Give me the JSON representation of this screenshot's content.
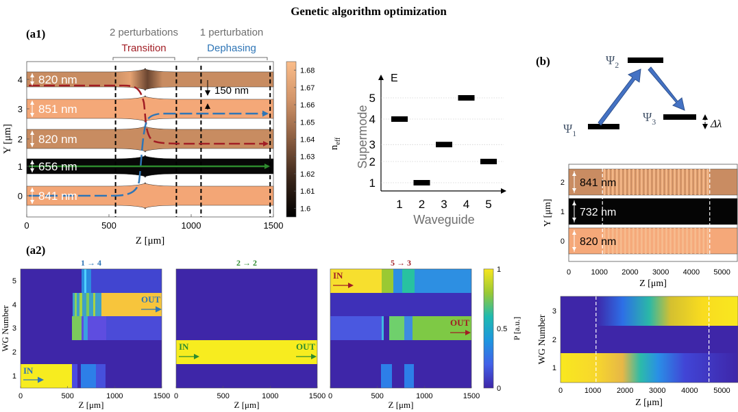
{
  "figure": {
    "title": "Genetic algorithm optimization",
    "panel_a1_label": "(a1)",
    "panel_a2_label": "(a2)",
    "panel_b_label": "(b)"
  },
  "a1": {
    "top_brackets": [
      {
        "count": "2 perturbations",
        "kind": "Transition",
        "color": "#a11d24"
      },
      {
        "count": "1 perturbation",
        "kind": "Dephasing",
        "color": "#2e75b6"
      }
    ],
    "waveguides": [
      {
        "y": 4,
        "width": "820 nm",
        "color": "#c88c61"
      },
      {
        "y": 3,
        "width": "851 nm",
        "color": "#f4a878"
      },
      {
        "y": 2,
        "width": "820 nm",
        "color": "#c88c61"
      },
      {
        "y": 1,
        "width": "656 nm",
        "color": "#070707"
      },
      {
        "y": 0,
        "width": "841 nm",
        "color": "#f3a676"
      }
    ],
    "gap_label": "150 nm",
    "xlabel": "Z [μm]",
    "ylabel": "Y [μm]",
    "xticks": [
      0,
      500,
      1000,
      1500
    ],
    "yticks": [
      0,
      1,
      2,
      3,
      4
    ],
    "dashed_z": [
      540,
      910,
      1060,
      1480
    ],
    "colorbar": {
      "label": "n",
      "label_sub": "eff",
      "ticks": [
        "1.6",
        "1.61",
        "1.62",
        "1.63",
        "1.64",
        "1.65",
        "1.66",
        "1.67",
        "1.68"
      ],
      "range": [
        1.595,
        1.685
      ]
    }
  },
  "supermode": {
    "chart_data": {
      "type": "scatter",
      "xlabel": "Waveguide",
      "ylabel": "Supermode",
      "axis_label_e": "E",
      "x": [
        1,
        2,
        3,
        4,
        5
      ],
      "y": [
        4,
        1,
        2.8,
        5,
        2
      ],
      "xticks": [
        "1",
        "2",
        "3",
        "4",
        "5"
      ],
      "yticks": [
        {
          "v": 1,
          "t": "1"
        },
        {
          "v": 2,
          "t": "2"
        },
        {
          "v": 2.8,
          "t": "3"
        },
        {
          "v": 4,
          "t": "4"
        },
        {
          "v": 5,
          "t": "5"
        }
      ]
    }
  },
  "b": {
    "levels": [
      {
        "symbol": "Ψ",
        "sub": "1"
      },
      {
        "symbol": "Ψ",
        "sub": "2"
      },
      {
        "symbol": "Ψ",
        "sub": "3"
      }
    ],
    "delta_label": "Δλ",
    "waveguides": [
      {
        "y": 2,
        "width": "841 nm",
        "color": "#c98c62"
      },
      {
        "y": 1,
        "width": "732 nm",
        "color": "#050505"
      },
      {
        "y": 0,
        "width": "820 nm",
        "color": "#f5a879"
      }
    ],
    "xlabel": "Z [μm]",
    "ylabel": "Y [μm]",
    "xticks": [
      0,
      1000,
      2000,
      3000,
      4000,
      5000
    ],
    "yticks": [
      0,
      1,
      2
    ],
    "dashed_z": [
      1100,
      4600
    ],
    "heatmap": {
      "xlabel": "Z [μm]",
      "ylabel": "WG Number",
      "xticks": [
        0,
        1000,
        2000,
        3000,
        4000,
        5000
      ],
      "yticks": [
        1,
        2,
        3
      ],
      "dashed_z": [
        1100,
        4600
      ]
    }
  },
  "a2": {
    "panels": [
      {
        "title": "1 → 4",
        "title_color": "#2e75b6",
        "in_label": "IN",
        "out_label": "OUT",
        "arrow_color": "#2e75b6"
      },
      {
        "title": "2 → 2",
        "title_color": "#2e8b2e",
        "in_label": "IN",
        "out_label": "OUT",
        "arrow_color": "#2e8b2e"
      },
      {
        "title": "5 → 3",
        "title_color": "#a11d24",
        "in_label": "IN",
        "out_label": "OUT",
        "arrow_color": "#a11d24"
      }
    ],
    "xlabel": "Z [μm]",
    "ylabel": "WG Number",
    "xticks": [
      0,
      500,
      1000,
      1500
    ],
    "yticks": [
      1,
      2,
      3,
      4,
      5
    ],
    "colorbar": {
      "label": "P [a.u.]",
      "ticks": [
        "0",
        "0.5",
        "1"
      ]
    }
  }
}
